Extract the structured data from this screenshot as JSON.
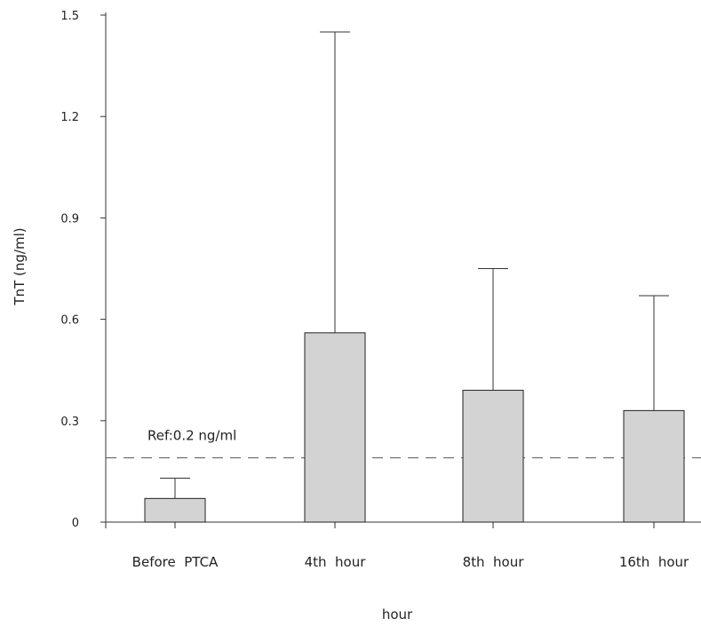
{
  "chart_data": {
    "type": "bar",
    "xlabel": "hour",
    "ylabel": "TnT (ng/ml)",
    "ylim": [
      0,
      1.5
    ],
    "yticks": [
      "0",
      "0.3",
      "0.6",
      "0.9",
      "1.2",
      "1.5"
    ],
    "categories": [
      "Before  PTCA",
      "4th  hour",
      "8th  hour",
      "16th  hour"
    ],
    "values": [
      0.07,
      0.56,
      0.39,
      0.33
    ],
    "error_upper": [
      0.13,
      1.45,
      0.75,
      0.67
    ],
    "reference": {
      "value": 0.19,
      "label": "Ref:0.2 ng/ml"
    },
    "bar_color": "#d3d3d3"
  }
}
